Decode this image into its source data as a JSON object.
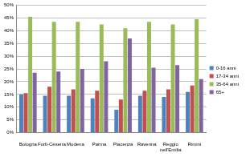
{
  "chart_data": {
    "type": "bar",
    "categories": [
      "Bologna",
      "Forlì-Cesena",
      "Modena",
      "Parma",
      "Piacenza",
      "Ravenna",
      "Reggio nell'Emilia",
      "Rimini"
    ],
    "series": [
      {
        "name": "0-16 anni",
        "color": "#4F81BD",
        "values": [
          15,
          14.5,
          14.5,
          13.5,
          9,
          14.5,
          14,
          16
        ]
      },
      {
        "name": "17-34 anni",
        "color": "#C0504D",
        "values": [
          15.5,
          18,
          17,
          16.5,
          13,
          16.5,
          17,
          18.5
        ]
      },
      {
        "name": "35-64 anni",
        "color": "#9BBB59",
        "values": [
          45.5,
          43.5,
          43.5,
          42.5,
          41,
          43.5,
          42.5,
          44.5
        ]
      },
      {
        "name": "65+",
        "color": "#8064A2",
        "values": [
          23.5,
          24,
          25,
          28,
          37,
          25.5,
          26.5,
          21
        ]
      }
    ],
    "ylim": [
      0,
      50
    ],
    "yticks": [
      {
        "value": 0,
        "label": "0%"
      },
      {
        "value": 5,
        "label": "5%"
      },
      {
        "value": 10,
        "label": "10%"
      },
      {
        "value": 15,
        "label": "15%"
      },
      {
        "value": 20,
        "label": "20%"
      },
      {
        "value": 25,
        "label": "25%"
      },
      {
        "value": 30,
        "label": "30%"
      },
      {
        "value": 35,
        "label": "35%"
      },
      {
        "value": 40,
        "label": "40%"
      },
      {
        "value": 45,
        "label": "45%"
      },
      {
        "value": 50,
        "label": "50%"
      }
    ],
    "grid": true,
    "legend": "right"
  }
}
